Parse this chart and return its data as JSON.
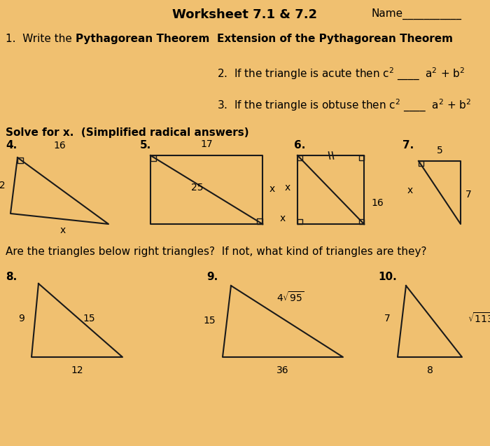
{
  "title": "Worksheet 7.1 & 7.2",
  "name_label": "Name___________",
  "bg_color": "#f0c070",
  "text_color": "#000000",
  "line_color": "#1a1a1a",
  "section1_text": "1.  Write the ",
  "section1_bold": "Pythagorean Theorem",
  "ext_heading": "Extension of the Pythagorean Theorem",
  "item2": "2.  If the triangle is acute then c² ____  a² + b²",
  "item3": "3.  If the triangle is obtuse then c² ____  a² + b²",
  "solve_header": "Solve for x.  (Simplified radical answers)",
  "are_triangles": "Are the triangles below right triangles?  If not, what kind of triangles are they?"
}
